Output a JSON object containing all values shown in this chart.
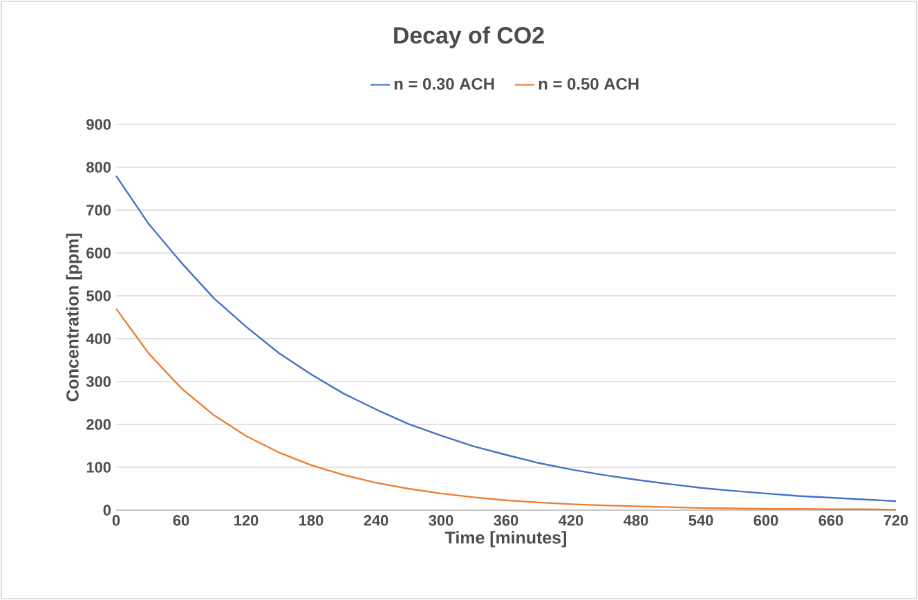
{
  "chart_data": {
    "type": "line",
    "title": "Decay of CO2",
    "xlabel": "Time [minutes]",
    "ylabel": "Concentration [ppm]",
    "x": [
      0,
      30,
      60,
      90,
      120,
      150,
      180,
      210,
      240,
      270,
      300,
      330,
      360,
      390,
      420,
      450,
      480,
      510,
      540,
      570,
      600,
      630,
      660,
      690,
      720
    ],
    "series": [
      {
        "name": "n = 0.30 ACH",
        "color": "#4472c4",
        "values": [
          780,
          668,
          578,
          495,
          428,
          367,
          317,
          272,
          235,
          201,
          174,
          149,
          129,
          110,
          95,
          82,
          71,
          61,
          52,
          45,
          39,
          33,
          29,
          25,
          21
        ]
      },
      {
        "name": "n = 0.50 ACH",
        "color": "#ed7d31",
        "values": [
          470,
          366,
          285,
          222,
          173,
          135,
          105,
          82,
          64,
          50,
          39,
          30,
          23,
          18,
          14,
          11,
          9,
          7,
          5,
          4,
          3,
          3,
          2,
          2,
          1
        ]
      }
    ],
    "xlim": [
      0,
      720
    ],
    "xticks": [
      0,
      60,
      120,
      180,
      240,
      300,
      360,
      420,
      480,
      540,
      600,
      660,
      720
    ],
    "ylim": [
      0,
      900
    ],
    "yticks": [
      0,
      100,
      200,
      300,
      400,
      500,
      600,
      700,
      800,
      900
    ],
    "grid": "y",
    "legend": "top"
  }
}
